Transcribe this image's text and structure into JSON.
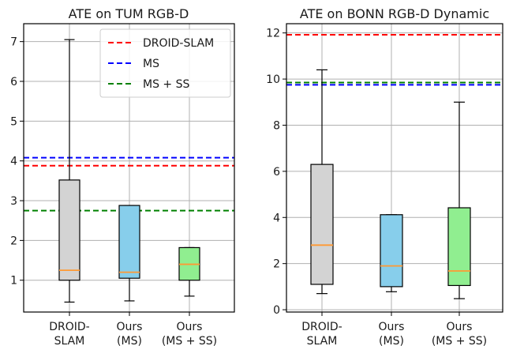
{
  "chart_data": [
    {
      "type": "box",
      "title": "ATE on TUM RGB-D",
      "xlabel": "",
      "ylabel": "",
      "ylim": [
        0.2,
        7.45
      ],
      "yticks": [
        1,
        2,
        3,
        4,
        5,
        6,
        7
      ],
      "grid": true,
      "legend_position": "top-right",
      "categories": [
        {
          "lines": [
            "DROID-",
            "SLAM"
          ]
        },
        {
          "lines": [
            "Ours",
            "(MS)"
          ]
        },
        {
          "lines": [
            "Ours",
            "(MS + SS)"
          ]
        }
      ],
      "boxes": [
        {
          "whisker_low": 0.45,
          "q1": 1.0,
          "median": 1.25,
          "q3": 3.52,
          "whisker_high": 7.05,
          "color": "#d3d3d3"
        },
        {
          "whisker_low": 0.48,
          "q1": 1.05,
          "median": 1.2,
          "q3": 2.88,
          "whisker_high": 2.88,
          "color": "#87ceeb"
        },
        {
          "whisker_low": 0.6,
          "q1": 1.0,
          "median": 1.4,
          "q3": 1.82,
          "whisker_high": 1.82,
          "color": "#90ee90"
        }
      ],
      "reference_lines": [
        {
          "name": "DROID-SLAM",
          "value": 3.88,
          "color": "#ff0000"
        },
        {
          "name": "MS",
          "value": 4.08,
          "color": "#0000ff"
        },
        {
          "name": "MS + SS",
          "value": 2.75,
          "color": "#008000"
        }
      ],
      "median_color": "#ff9933"
    },
    {
      "type": "box",
      "title": "ATE on BONN RGB-D Dynamic",
      "xlabel": "",
      "ylabel": "",
      "ylim": [
        -0.1,
        12.4
      ],
      "yticks": [
        0,
        2,
        4,
        6,
        8,
        10,
        12
      ],
      "grid": true,
      "categories": [
        {
          "lines": [
            "DROID-",
            "SLAM"
          ]
        },
        {
          "lines": [
            "Ours",
            "(MS)"
          ]
        },
        {
          "lines": [
            "Ours",
            "(MS + SS)"
          ]
        }
      ],
      "boxes": [
        {
          "whisker_low": 0.7,
          "q1": 1.1,
          "median": 2.8,
          "q3": 6.3,
          "whisker_high": 10.4,
          "color": "#d3d3d3"
        },
        {
          "whisker_low": 0.78,
          "q1": 1.0,
          "median": 1.9,
          "q3": 4.12,
          "whisker_high": 4.12,
          "color": "#87ceeb"
        },
        {
          "whisker_low": 0.48,
          "q1": 1.05,
          "median": 1.68,
          "q3": 4.42,
          "whisker_high": 9.0,
          "color": "#90ee90"
        }
      ],
      "reference_lines": [
        {
          "name": "DROID-SLAM",
          "value": 11.92,
          "color": "#ff0000"
        },
        {
          "name": "MS",
          "value": 9.75,
          "color": "#0000ff"
        },
        {
          "name": "MS + SS",
          "value": 9.85,
          "color": "#008000"
        }
      ],
      "median_color": "#ff9933"
    }
  ]
}
